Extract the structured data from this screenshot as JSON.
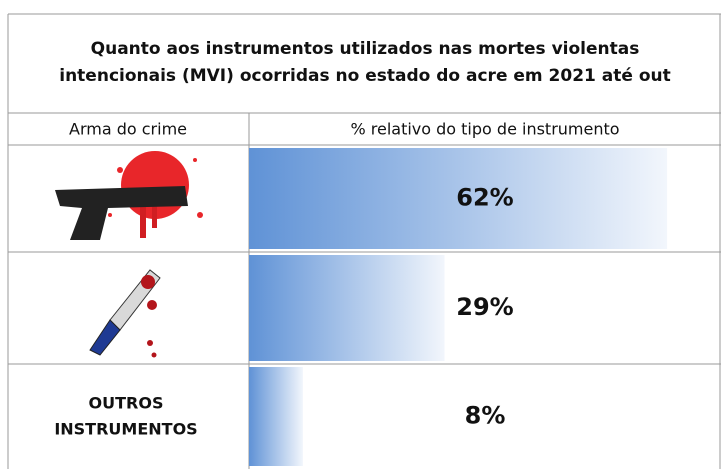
{
  "chart_data": {
    "type": "bar",
    "title": "Quanto aos instrumentos utilizados nas  mortes violentas intencionais (MVI) ocorridas no estado do acre em 2021 até out",
    "category_header": "Arma do crime",
    "value_header": "% relativo do tipo de instrumento",
    "categories": [
      null,
      null,
      "OUTROS INSTRUMENTOS"
    ],
    "values": [
      62,
      29,
      8
    ],
    "value_labels": [
      "62%",
      "29%",
      "8%"
    ],
    "xlim": [
      0,
      70
    ],
    "color": "#5f92d6"
  }
}
